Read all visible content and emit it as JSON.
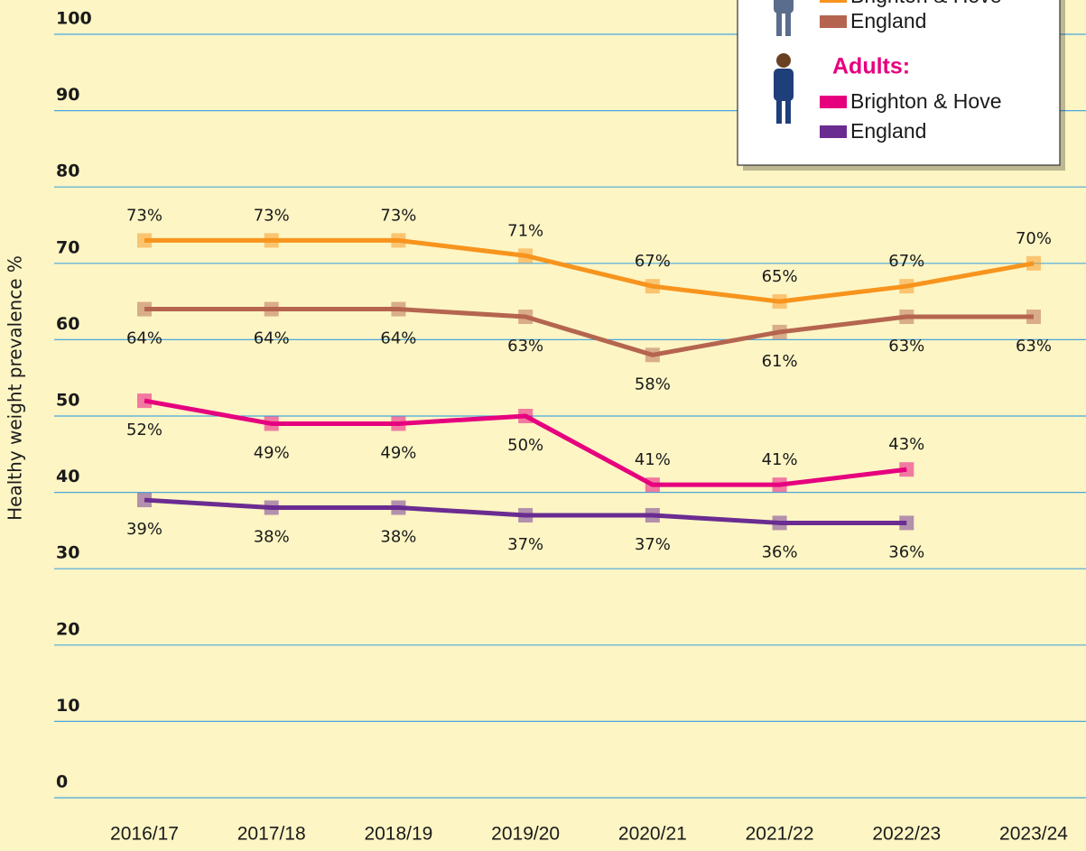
{
  "chart_data": {
    "type": "line",
    "y_label": "Healthy weight prevalence %",
    "categories": [
      "2016/17",
      "2017/18",
      "2018/19",
      "2019/20",
      "2020/21",
      "2021/22",
      "2022/23",
      "2023/24"
    ],
    "ylim": [
      0,
      100
    ],
    "yticks": [
      0,
      10,
      20,
      30,
      40,
      50,
      60,
      70,
      80,
      90,
      100
    ],
    "grid": true,
    "legend_heading": "Adults:",
    "series": [
      {
        "name": "Brighton & Hove",
        "color": "#f7941d",
        "values": [
          73,
          73,
          73,
          71,
          67,
          65,
          67,
          70
        ],
        "value_labels": [
          "73%",
          "73%",
          "73%",
          "71%",
          "67%",
          "65%",
          "67%",
          "70%"
        ]
      },
      {
        "name": "England",
        "color": "#b5654f",
        "values": [
          64,
          64,
          64,
          63,
          58,
          61,
          63,
          63
        ],
        "value_labels": [
          "64%",
          "64%",
          "64%",
          "63%",
          "58%",
          "61%",
          "63%",
          "63%"
        ]
      },
      {
        "name": "Brighton & Hove",
        "color": "#e6007e",
        "values": [
          52,
          49,
          49,
          50,
          41,
          41,
          43,
          null
        ],
        "value_labels": [
          "52%",
          "49%",
          "49%",
          "50%",
          "41%",
          "41%",
          "43%",
          null
        ]
      },
      {
        "name": "England",
        "color": "#6a2c91",
        "values": [
          39,
          38,
          38,
          37,
          37,
          36,
          36,
          null
        ],
        "value_labels": [
          "39%",
          "38%",
          "38%",
          "37%",
          "37%",
          "36%",
          "36%",
          null
        ]
      }
    ]
  }
}
